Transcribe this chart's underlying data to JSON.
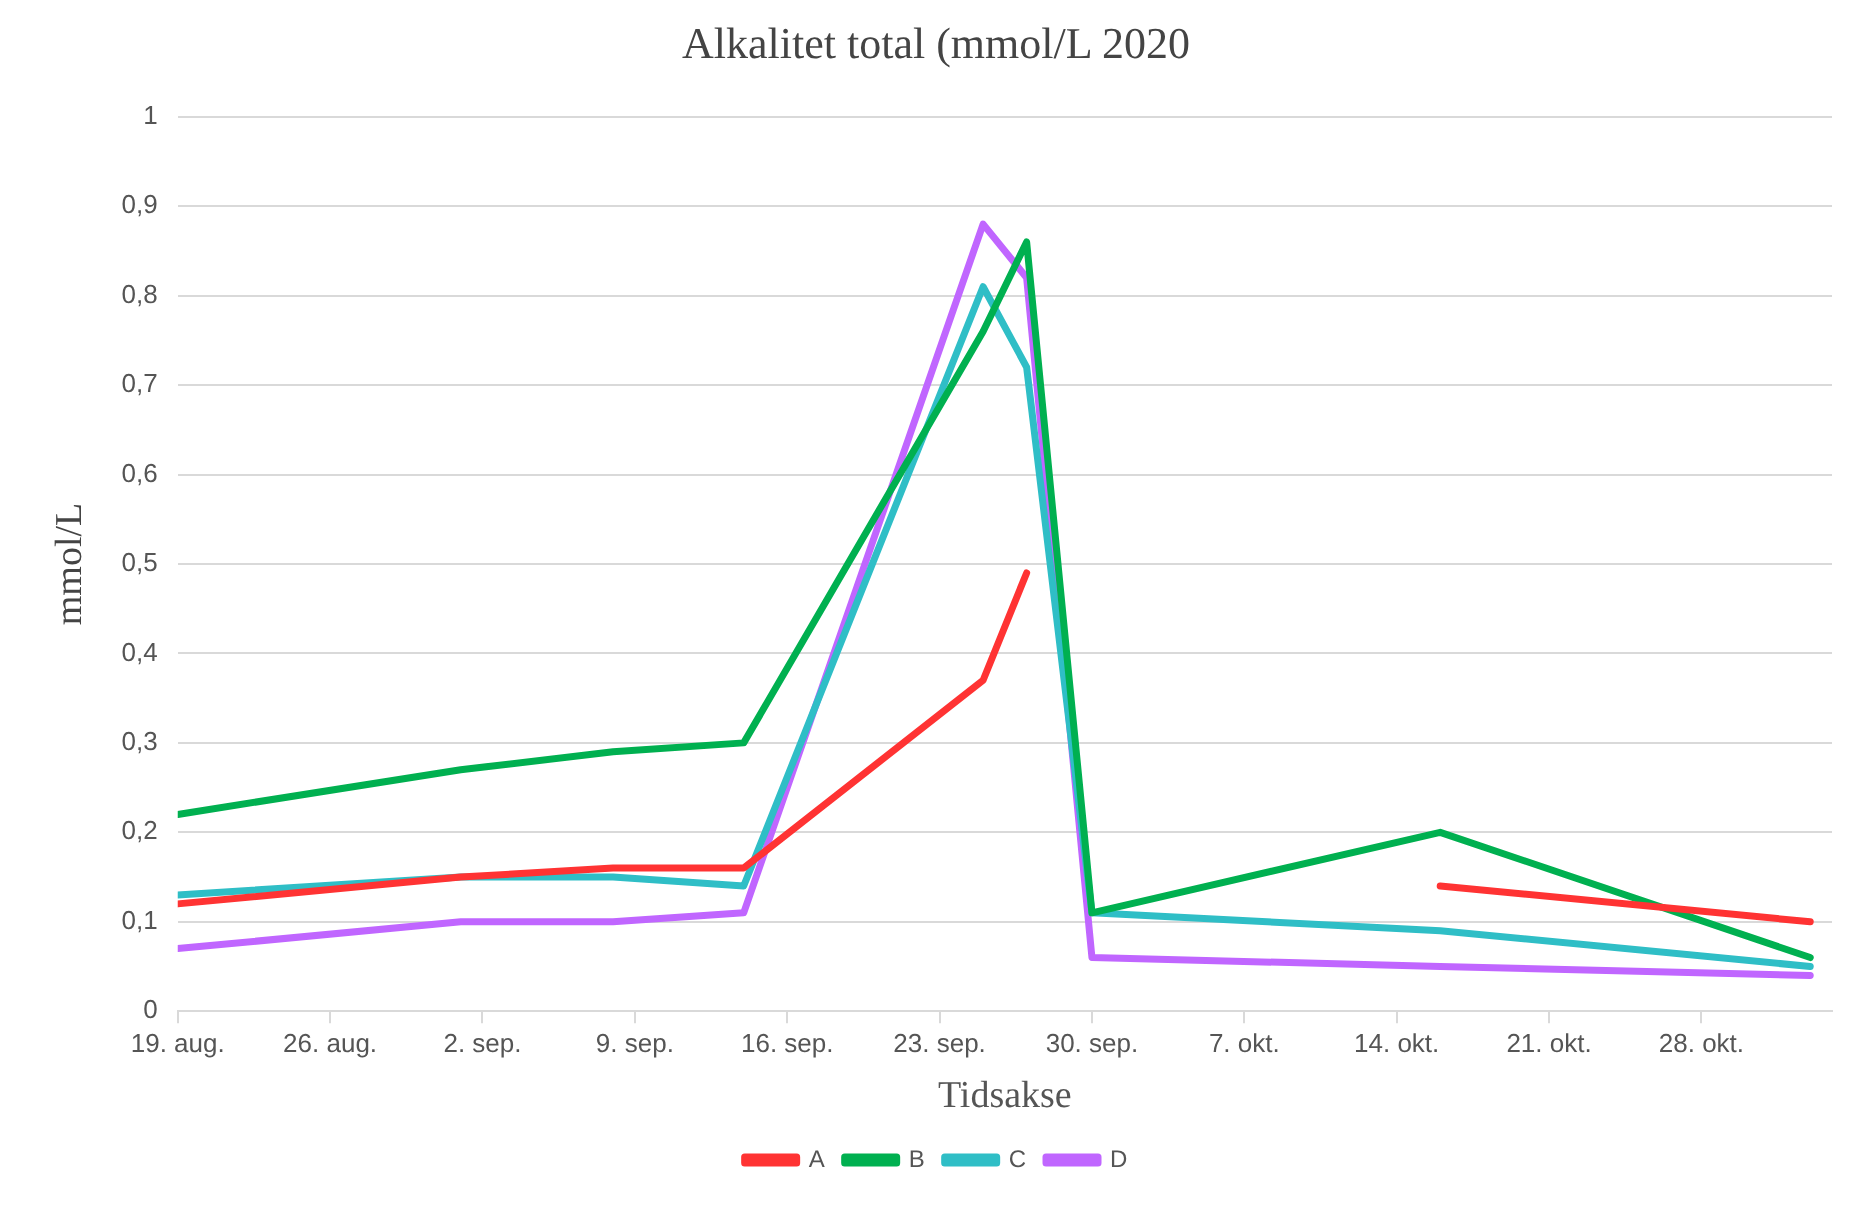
{
  "chart_data": {
    "type": "line",
    "title": "Alkalitet total (mmol/L 2020",
    "xlabel": "Tidsakse",
    "ylabel": "mmol/L",
    "x": [
      "2020-08-19",
      "2020-09-01",
      "2020-09-08",
      "2020-09-14",
      "2020-09-25",
      "2020-09-27",
      "2020-09-30",
      "2020-10-16",
      "2020-11-02"
    ],
    "series": [
      {
        "name": "A",
        "color": "#ff3333",
        "values": [
          0.12,
          0.15,
          0.16,
          0.16,
          0.37,
          0.49,
          null,
          0.14,
          0.1
        ]
      },
      {
        "name": "B",
        "color": "#00b050",
        "values": [
          0.22,
          0.27,
          0.29,
          0.3,
          0.76,
          0.86,
          0.11,
          0.2,
          0.06
        ]
      },
      {
        "name": "C",
        "color": "#2fbec6",
        "values": [
          0.13,
          0.15,
          0.15,
          0.14,
          0.81,
          0.72,
          0.11,
          0.09,
          0.05
        ]
      },
      {
        "name": "D",
        "color": "#c066ff",
        "values": [
          0.07,
          0.1,
          0.1,
          0.11,
          0.88,
          0.82,
          0.06,
          0.05,
          0.04
        ]
      }
    ],
    "xlim": [
      "2020-08-19",
      "2020-11-03"
    ],
    "xticks": [
      {
        "value": "2020-08-19",
        "label": "19. aug."
      },
      {
        "value": "2020-08-26",
        "label": "26. aug."
      },
      {
        "value": "2020-09-02",
        "label": "2. sep."
      },
      {
        "value": "2020-09-09",
        "label": "9. sep."
      },
      {
        "value": "2020-09-16",
        "label": "16. sep."
      },
      {
        "value": "2020-09-23",
        "label": "23. sep."
      },
      {
        "value": "2020-09-30",
        "label": "30. sep."
      },
      {
        "value": "2020-10-07",
        "label": "7. okt."
      },
      {
        "value": "2020-10-14",
        "label": "14. okt."
      },
      {
        "value": "2020-10-21",
        "label": "21. okt."
      },
      {
        "value": "2020-10-28",
        "label": "28. okt."
      }
    ],
    "ylim": [
      0,
      1
    ],
    "yticks": [
      {
        "value": 0,
        "label": "0"
      },
      {
        "value": 0.1,
        "label": "0,1"
      },
      {
        "value": 0.2,
        "label": "0,2"
      },
      {
        "value": 0.3,
        "label": "0,3"
      },
      {
        "value": 0.4,
        "label": "0,4"
      },
      {
        "value": 0.5,
        "label": "0,5"
      },
      {
        "value": 0.6,
        "label": "0,6"
      },
      {
        "value": 0.7,
        "label": "0,7"
      },
      {
        "value": 0.8,
        "label": "0,8"
      },
      {
        "value": 0.9,
        "label": "0,9"
      },
      {
        "value": 1,
        "label": "1"
      }
    ],
    "grid": "y",
    "legend": "bottom",
    "marker": "none",
    "line_style": "solid"
  }
}
